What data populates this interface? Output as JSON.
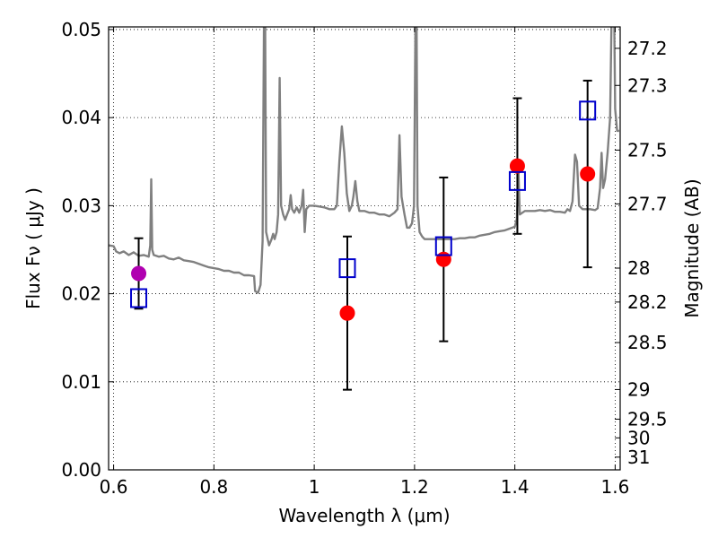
{
  "chart_data": {
    "type": "scatter",
    "xlabel": "Wavelength  λ (μm)",
    "ylabel": "Flux  Fν  ( μJy )",
    "y2label": "Magnitude (AB)",
    "xlim": [
      0.59,
      1.61
    ],
    "ylim": [
      0.0,
      0.0503
    ],
    "grid": true,
    "x_ticks": [
      "0.6",
      "0.8",
      "1",
      "1.2",
      "1.4",
      "1.6"
    ],
    "x_tick_values": [
      0.6,
      0.8,
      1.0,
      1.2,
      1.4,
      1.6
    ],
    "y_ticks": [
      "0.00",
      "0.01",
      "0.02",
      "0.03",
      "0.04",
      "0.05"
    ],
    "y_tick_values": [
      0.0,
      0.01,
      0.02,
      0.03,
      0.04,
      0.05
    ],
    "y2_ticks": [
      "27.2",
      "27.3",
      "27.5",
      "27.7",
      "28",
      "28.2",
      "28.5",
      "29",
      "29.5",
      "30",
      "31"
    ],
    "y2_tick_values": [
      27.2,
      27.3,
      27.5,
      27.7,
      28.0,
      28.2,
      28.5,
      29.0,
      29.5,
      30.0,
      31.0
    ],
    "colors": {
      "spectrum": "#808080",
      "observed": "#ff0000",
      "optical": "#b000b0",
      "model": "#0000cc",
      "errorbar": "#000000"
    },
    "spectrum": [
      [
        0.59,
        0.0255
      ],
      [
        0.6,
        0.0254
      ],
      [
        0.605,
        0.0248
      ],
      [
        0.612,
        0.0246
      ],
      [
        0.62,
        0.0248
      ],
      [
        0.63,
        0.0244
      ],
      [
        0.64,
        0.0247
      ],
      [
        0.65,
        0.0243
      ],
      [
        0.66,
        0.0244
      ],
      [
        0.67,
        0.0242
      ],
      [
        0.673,
        0.0255
      ],
      [
        0.675,
        0.033
      ],
      [
        0.677,
        0.025
      ],
      [
        0.68,
        0.0244
      ],
      [
        0.69,
        0.0242
      ],
      [
        0.7,
        0.0243
      ],
      [
        0.71,
        0.024
      ],
      [
        0.72,
        0.0239
      ],
      [
        0.73,
        0.0241
      ],
      [
        0.74,
        0.0238
      ],
      [
        0.75,
        0.0237
      ],
      [
        0.76,
        0.0236
      ],
      [
        0.77,
        0.0234
      ],
      [
        0.78,
        0.0232
      ],
      [
        0.79,
        0.023
      ],
      [
        0.8,
        0.0229
      ],
      [
        0.81,
        0.0228
      ],
      [
        0.82,
        0.0226
      ],
      [
        0.83,
        0.0226
      ],
      [
        0.84,
        0.0224
      ],
      [
        0.85,
        0.0224
      ],
      [
        0.86,
        0.0221
      ],
      [
        0.87,
        0.0221
      ],
      [
        0.88,
        0.022
      ],
      [
        0.882,
        0.0203
      ],
      [
        0.888,
        0.0201
      ],
      [
        0.893,
        0.021
      ],
      [
        0.897,
        0.026
      ],
      [
        0.9,
        0.052
      ],
      [
        0.902,
        0.052
      ],
      [
        0.904,
        0.027
      ],
      [
        0.91,
        0.0255
      ],
      [
        0.915,
        0.0262
      ],
      [
        0.918,
        0.0268
      ],
      [
        0.921,
        0.0262
      ],
      [
        0.925,
        0.027
      ],
      [
        0.928,
        0.029
      ],
      [
        0.931,
        0.0445
      ],
      [
        0.934,
        0.03
      ],
      [
        0.938,
        0.029
      ],
      [
        0.942,
        0.0284
      ],
      [
        0.946,
        0.029
      ],
      [
        0.95,
        0.0296
      ],
      [
        0.953,
        0.0312
      ],
      [
        0.956,
        0.0296
      ],
      [
        0.96,
        0.0292
      ],
      [
        0.965,
        0.0298
      ],
      [
        0.97,
        0.0292
      ],
      [
        0.975,
        0.03
      ],
      [
        0.978,
        0.0318
      ],
      [
        0.981,
        0.027
      ],
      [
        0.984,
        0.0296
      ],
      [
        0.99,
        0.03
      ],
      [
        1.0,
        0.03
      ],
      [
        1.01,
        0.0299
      ],
      [
        1.02,
        0.0298
      ],
      [
        1.03,
        0.0296
      ],
      [
        1.04,
        0.0296
      ],
      [
        1.045,
        0.03
      ],
      [
        1.05,
        0.035
      ],
      [
        1.055,
        0.039
      ],
      [
        1.06,
        0.036
      ],
      [
        1.065,
        0.0314
      ],
      [
        1.07,
        0.0294
      ],
      [
        1.075,
        0.03
      ],
      [
        1.078,
        0.031
      ],
      [
        1.082,
        0.0328
      ],
      [
        1.086,
        0.0305
      ],
      [
        1.09,
        0.0294
      ],
      [
        1.1,
        0.0294
      ],
      [
        1.11,
        0.0292
      ],
      [
        1.12,
        0.0292
      ],
      [
        1.13,
        0.029
      ],
      [
        1.14,
        0.029
      ],
      [
        1.15,
        0.0288
      ],
      [
        1.16,
        0.0292
      ],
      [
        1.166,
        0.0296
      ],
      [
        1.17,
        0.038
      ],
      [
        1.174,
        0.031
      ],
      [
        1.18,
        0.029
      ],
      [
        1.185,
        0.0275
      ],
      [
        1.19,
        0.0275
      ],
      [
        1.195,
        0.028
      ],
      [
        1.199,
        0.03
      ],
      [
        1.202,
        0.052
      ],
      [
        1.204,
        0.052
      ],
      [
        1.206,
        0.03
      ],
      [
        1.21,
        0.027
      ],
      [
        1.215,
        0.0265
      ],
      [
        1.22,
        0.0262
      ],
      [
        1.23,
        0.0262
      ],
      [
        1.24,
        0.0262
      ],
      [
        1.25,
        0.0262
      ],
      [
        1.26,
        0.0262
      ],
      [
        1.27,
        0.0262
      ],
      [
        1.28,
        0.0262
      ],
      [
        1.29,
        0.0263
      ],
      [
        1.3,
        0.0263
      ],
      [
        1.31,
        0.0264
      ],
      [
        1.32,
        0.0264
      ],
      [
        1.33,
        0.0266
      ],
      [
        1.34,
        0.0267
      ],
      [
        1.35,
        0.0268
      ],
      [
        1.36,
        0.027
      ],
      [
        1.37,
        0.0271
      ],
      [
        1.38,
        0.0272
      ],
      [
        1.39,
        0.0274
      ],
      [
        1.4,
        0.0276
      ],
      [
        1.404,
        0.0285
      ],
      [
        1.407,
        0.034
      ],
      [
        1.41,
        0.029
      ],
      [
        1.42,
        0.0294
      ],
      [
        1.43,
        0.0294
      ],
      [
        1.44,
        0.0294
      ],
      [
        1.45,
        0.0295
      ],
      [
        1.46,
        0.0294
      ],
      [
        1.47,
        0.0295
      ],
      [
        1.48,
        0.0293
      ],
      [
        1.49,
        0.0293
      ],
      [
        1.5,
        0.0292
      ],
      [
        1.505,
        0.0296
      ],
      [
        1.51,
        0.0294
      ],
      [
        1.515,
        0.0305
      ],
      [
        1.52,
        0.0358
      ],
      [
        1.524,
        0.035
      ],
      [
        1.528,
        0.03
      ],
      [
        1.535,
        0.0296
      ],
      [
        1.54,
        0.0296
      ],
      [
        1.55,
        0.0296
      ],
      [
        1.56,
        0.0295
      ],
      [
        1.565,
        0.0297
      ],
      [
        1.57,
        0.032
      ],
      [
        1.573,
        0.036
      ],
      [
        1.576,
        0.032
      ],
      [
        1.58,
        0.033
      ],
      [
        1.585,
        0.036
      ],
      [
        1.59,
        0.04
      ],
      [
        1.593,
        0.052
      ],
      [
        1.598,
        0.052
      ],
      [
        1.6,
        0.041
      ],
      [
        1.604,
        0.0385
      ],
      [
        1.608,
        0.0385
      ]
    ],
    "observed": [
      {
        "x": 0.65,
        "y": 0.0223,
        "err": 0.004,
        "group": "optical"
      },
      {
        "x": 1.066,
        "y": 0.0178,
        "err": 0.0087,
        "group": "observed"
      },
      {
        "x": 1.258,
        "y": 0.0239,
        "err": 0.0093,
        "group": "observed"
      },
      {
        "x": 1.405,
        "y": 0.0345,
        "err": 0.0077,
        "group": "observed"
      },
      {
        "x": 1.545,
        "y": 0.0336,
        "err": 0.0106,
        "group": "observed"
      }
    ],
    "model": [
      {
        "x": 0.65,
        "y": 0.0195
      },
      {
        "x": 1.066,
        "y": 0.0229
      },
      {
        "x": 1.258,
        "y": 0.0254
      },
      {
        "x": 1.405,
        "y": 0.0328
      },
      {
        "x": 1.545,
        "y": 0.0408
      }
    ]
  }
}
